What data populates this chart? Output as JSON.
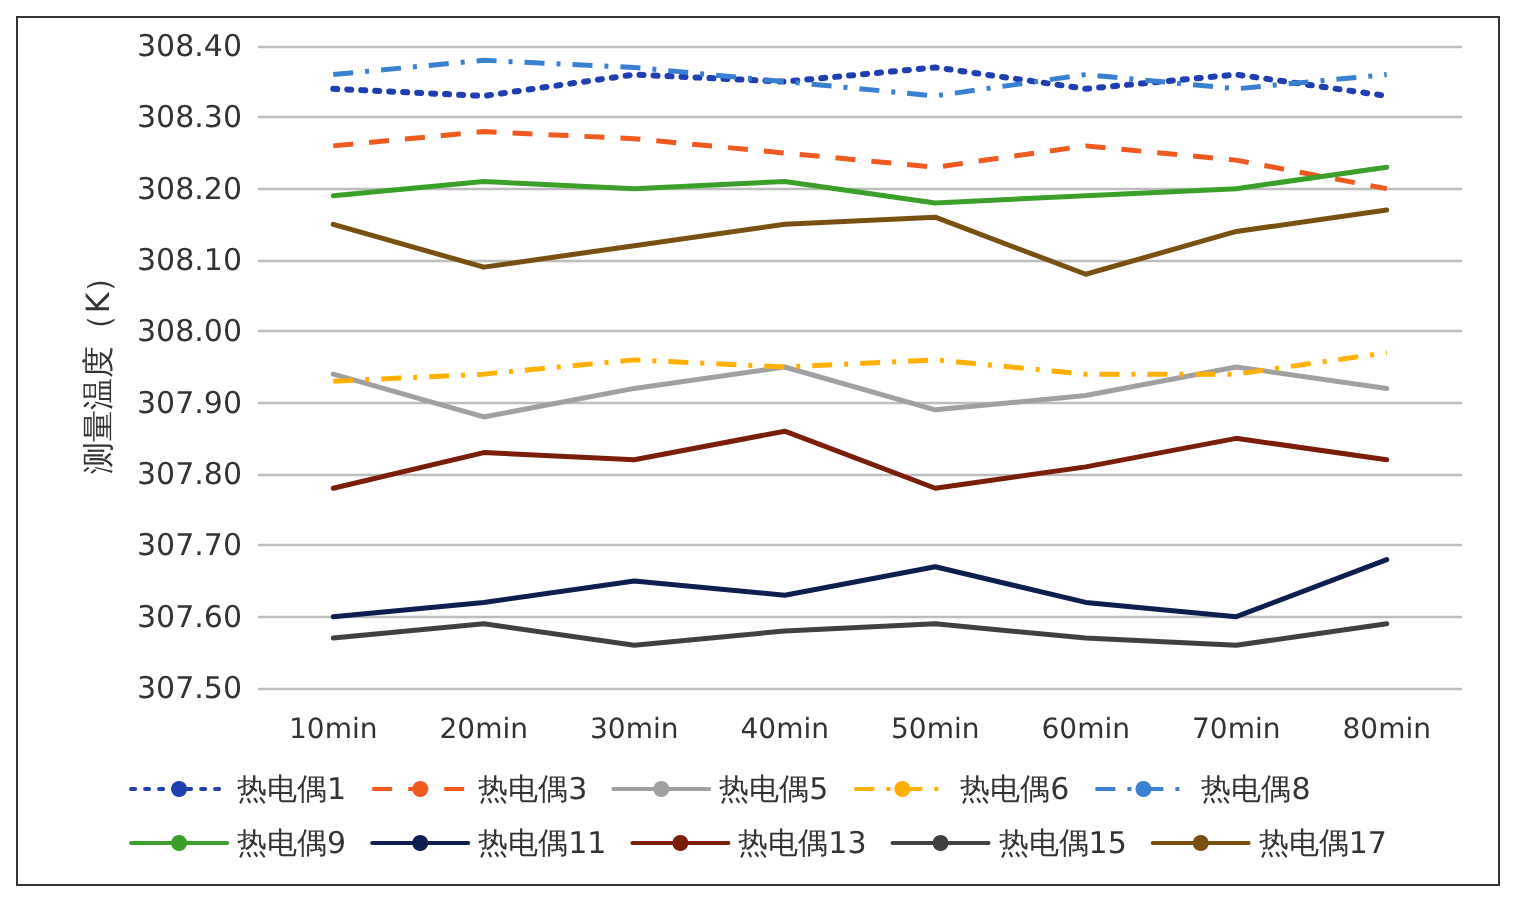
{
  "chart_data": {
    "type": "line",
    "ylabel": "测量温度（K）",
    "categories": [
      "10min",
      "20min",
      "30min",
      "40min",
      "50min",
      "60min",
      "70min",
      "80min"
    ],
    "series": [
      {
        "name": "热电偶1",
        "color": "#1f3fb0",
        "line_style": "dotted",
        "values": [
          308.34,
          308.33,
          308.36,
          308.35,
          308.37,
          308.34,
          308.36,
          308.33
        ]
      },
      {
        "name": "热电偶3",
        "color": "#f05a1e",
        "line_style": "dashed",
        "values": [
          308.26,
          308.28,
          308.27,
          308.25,
          308.23,
          308.26,
          308.24,
          308.2
        ]
      },
      {
        "name": "热电偶5",
        "color": "#a0a0a0",
        "line_style": "solid",
        "values": [
          307.94,
          307.88,
          307.92,
          307.95,
          307.89,
          307.91,
          307.95,
          307.92
        ]
      },
      {
        "name": "热电偶6",
        "color": "#ffb000",
        "line_style": "dashdot",
        "values": [
          307.93,
          307.94,
          307.96,
          307.95,
          307.96,
          307.94,
          307.94,
          307.97
        ]
      },
      {
        "name": "热电偶8",
        "color": "#3a80d0",
        "line_style": "dashdot",
        "values": [
          308.36,
          308.38,
          308.37,
          308.35,
          308.33,
          308.36,
          308.34,
          308.36
        ]
      },
      {
        "name": "热电偶9",
        "color": "#3aa02a",
        "line_style": "solid",
        "values": [
          308.19,
          308.21,
          308.2,
          308.21,
          308.18,
          308.19,
          308.2,
          308.23
        ]
      },
      {
        "name": "热电偶11",
        "color": "#0c1f50",
        "line_style": "solid",
        "values": [
          307.6,
          307.62,
          307.65,
          307.63,
          307.67,
          307.62,
          307.6,
          307.68
        ]
      },
      {
        "name": "热电偶13",
        "color": "#7a1e08",
        "line_style": "solid",
        "values": [
          307.78,
          307.83,
          307.82,
          307.86,
          307.78,
          307.81,
          307.85,
          307.82
        ]
      },
      {
        "name": "热电偶15",
        "color": "#404040",
        "line_style": "solid",
        "values": [
          307.57,
          307.59,
          307.56,
          307.58,
          307.59,
          307.57,
          307.56,
          307.59
        ]
      },
      {
        "name": "热电偶17",
        "color": "#7a5010",
        "line_style": "solid",
        "values": [
          308.15,
          308.09,
          308.12,
          308.15,
          308.16,
          308.08,
          308.14,
          308.17
        ]
      }
    ],
    "ylim": [
      307.5,
      308.4
    ],
    "yticks": [
      {
        "value": 307.5,
        "label": "307.50"
      },
      {
        "value": 307.6,
        "label": "307.60"
      },
      {
        "value": 307.7,
        "label": "307.70"
      },
      {
        "value": 307.8,
        "label": "307.80"
      },
      {
        "value": 307.9,
        "label": "307.90"
      },
      {
        "value": 308.0,
        "label": "308.00"
      },
      {
        "value": 308.1,
        "label": "308.10"
      },
      {
        "value": 308.2,
        "label": "308.20"
      },
      {
        "value": 308.3,
        "label": "308.30"
      },
      {
        "value": 308.4,
        "label": "308.40"
      }
    ],
    "grid": "y",
    "legend": "bottom",
    "marker": "none"
  }
}
